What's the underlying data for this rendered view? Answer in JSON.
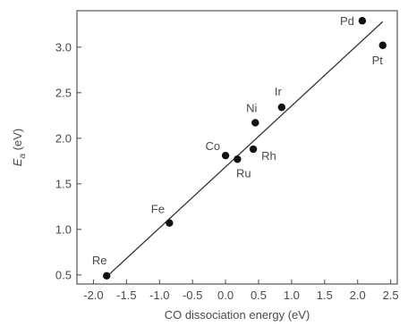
{
  "chart_data": {
    "type": "scatter",
    "xlabel": "CO dissociation energy (eV)",
    "ylabel_main": "E",
    "ylabel_sub": "a",
    "ylabel_unit": " (eV)",
    "xlim": [
      -2.25,
      2.6
    ],
    "ylim": [
      0.4,
      3.4
    ],
    "x_ticks": [
      -2.0,
      -1.5,
      -1.0,
      -0.5,
      0.0,
      0.5,
      1.0,
      1.5,
      2.0,
      2.5
    ],
    "x_tick_labels": [
      "-2.0",
      "-1.5",
      "-1.0",
      "-0.5",
      "0.0",
      "0.5",
      "1.0",
      "1.5",
      "2.0",
      "2.5"
    ],
    "y_ticks": [
      0.5,
      1.0,
      1.5,
      2.0,
      2.5,
      3.0
    ],
    "y_tick_labels": [
      "0.5",
      "1.0",
      "1.5",
      "2.0",
      "2.5",
      "3.0"
    ],
    "grid": false,
    "points": [
      {
        "label": "Re",
        "x": -1.8,
        "y": 0.49
      },
      {
        "label": "Fe",
        "x": -0.85,
        "y": 1.07
      },
      {
        "label": "Co",
        "x": 0.0,
        "y": 1.81
      },
      {
        "label": "Ru",
        "x": 0.18,
        "y": 1.77
      },
      {
        "label": "Rh",
        "x": 0.42,
        "y": 1.88
      },
      {
        "label": "Ni",
        "x": 0.45,
        "y": 2.17
      },
      {
        "label": "Ir",
        "x": 0.85,
        "y": 2.34
      },
      {
        "label": "Pd",
        "x": 2.07,
        "y": 3.29
      },
      {
        "label": "Pt",
        "x": 2.38,
        "y": 3.02
      }
    ],
    "fit_line": {
      "x": [
        -1.8,
        2.38
      ],
      "y": [
        0.48,
        3.28
      ]
    },
    "colors": {
      "marker": "#111111",
      "line": "#333333",
      "axis": "#555555",
      "text": "#4a4a4a"
    }
  }
}
